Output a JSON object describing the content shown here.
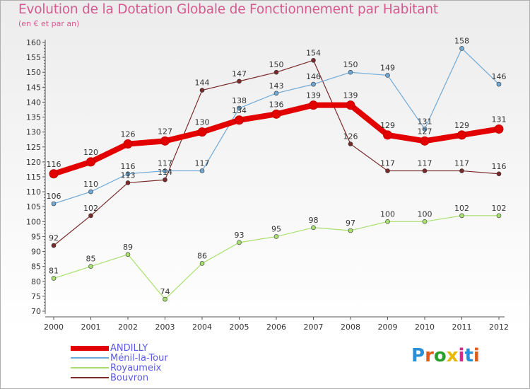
{
  "title": "Evolution de la Dotation Globale de Fonctionnement par Habitant",
  "subtitle": "(en € et par an)",
  "logo": "Proxiti",
  "colors": {
    "title": "#d45a8f",
    "legend_text": "#5a5ae6"
  },
  "chart_data": {
    "type": "line",
    "x": [
      "2000",
      "2001",
      "2002",
      "2003",
      "2004",
      "2005",
      "2006",
      "2007",
      "2008",
      "2009",
      "2010",
      "2011",
      "2012"
    ],
    "ylim": [
      70,
      160
    ],
    "yticks": [
      "70",
      "75",
      "80",
      "85",
      "90",
      "95",
      "100",
      "105",
      "110",
      "115",
      "120",
      "125",
      "130",
      "135",
      "140",
      "145",
      "150",
      "155",
      "160"
    ],
    "grid": false,
    "series": [
      {
        "name": "ANDILLY",
        "color": "#e30000",
        "values": [
          116,
          120,
          126,
          127,
          130,
          134,
          136,
          139,
          139,
          129,
          127,
          129,
          131
        ],
        "labels": [
          "116",
          "120",
          "126",
          "127",
          "130",
          "134",
          "136",
          "139",
          "139",
          "129",
          "127",
          "129",
          "131"
        ]
      },
      {
        "name": "Ménil-la-Tour",
        "color": "#6fa9d6",
        "values": [
          106,
          110,
          116,
          117,
          117,
          138,
          143,
          146,
          150,
          149,
          131,
          158,
          146
        ],
        "labels": [
          "106",
          "110",
          "116",
          "117",
          "117",
          "138",
          "143",
          "146",
          "150",
          "149",
          "131",
          "158",
          "146"
        ]
      },
      {
        "name": "Royaumeix",
        "color": "#a8e070",
        "values": [
          81,
          85,
          89,
          74,
          86,
          93,
          95,
          98,
          97,
          100,
          100,
          102,
          102
        ],
        "labels": [
          "81",
          "85",
          "89",
          "74",
          "86",
          "93",
          "95",
          "98",
          "97",
          "100",
          "100",
          "102",
          "102"
        ]
      },
      {
        "name": "Bouvron",
        "color": "#7a2a2a",
        "values": [
          92,
          102,
          113,
          114,
          144,
          147,
          150,
          154,
          126,
          117,
          117,
          117,
          116
        ],
        "labels": [
          "92",
          "102",
          "113",
          "114",
          "144",
          "147",
          "150",
          "154",
          "126",
          "117",
          "117",
          "117",
          "116"
        ]
      }
    ]
  }
}
